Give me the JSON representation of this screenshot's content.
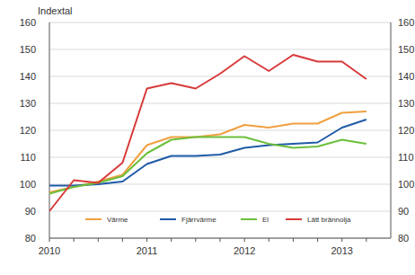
{
  "chart_data": {
    "type": "line",
    "y_label": "Indextal",
    "categories": [
      "2010",
      null,
      null,
      null,
      "2011",
      null,
      null,
      null,
      "2012",
      null,
      null,
      null,
      "2013",
      null
    ],
    "series": [
      {
        "name": "Värme",
        "color": "#f0a040",
        "values": [
          97,
          99,
          101,
          103.5,
          114.5,
          117.5,
          117.5,
          118.5,
          122,
          121,
          122.5,
          122.5,
          126.5,
          127
        ]
      },
      {
        "name": "Fjärrvärme",
        "color": "#1f5aa6",
        "values": [
          99.5,
          99.5,
          100,
          101,
          107.5,
          110.5,
          110.5,
          111,
          113.5,
          114.5,
          115,
          115.5,
          121,
          124
        ]
      },
      {
        "name": "El",
        "color": "#6cbf3c",
        "values": [
          96.5,
          99,
          100.5,
          103,
          111.5,
          116.5,
          117.5,
          117.5,
          117.5,
          115,
          113.5,
          114,
          116.5,
          115
        ]
      },
      {
        "name": "Lätt brännolja",
        "color": "#d83a3a",
        "values": [
          90,
          101.5,
          100.5,
          108,
          135.5,
          137.5,
          135.5,
          141,
          147.5,
          142,
          148,
          145.5,
          145.5,
          139
        ]
      }
    ],
    "ylim": [
      80,
      160
    ],
    "yticks": [
      80,
      90,
      100,
      110,
      120,
      130,
      140,
      150,
      160
    ],
    "grid": true,
    "legend": "bottom"
  }
}
